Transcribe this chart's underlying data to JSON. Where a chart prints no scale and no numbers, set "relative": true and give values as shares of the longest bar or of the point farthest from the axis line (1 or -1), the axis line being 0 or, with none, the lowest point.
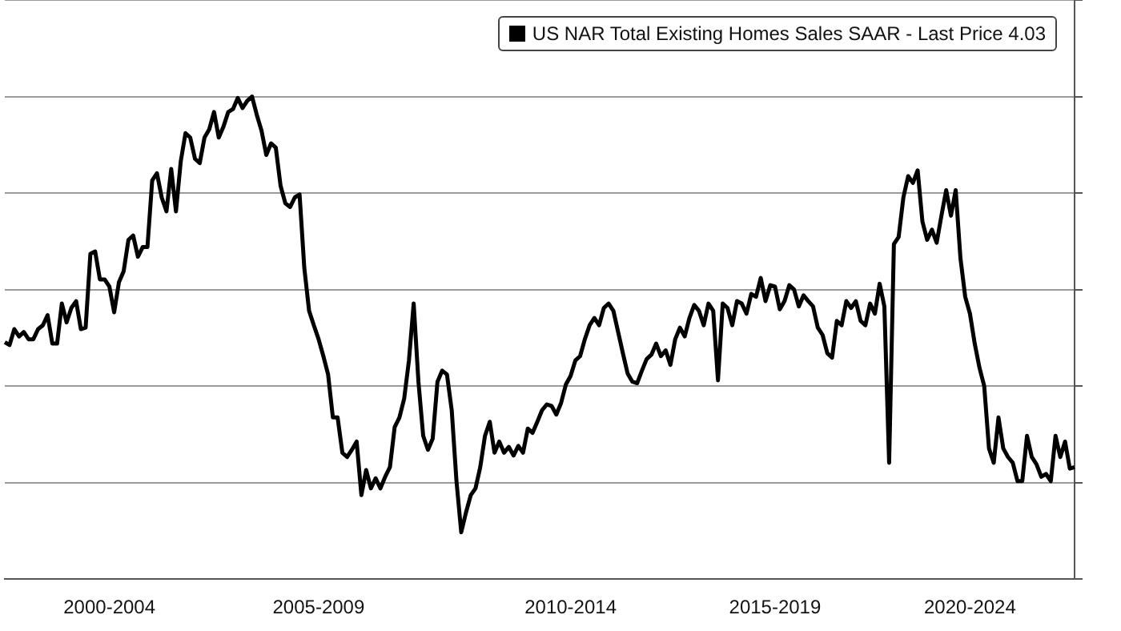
{
  "chart_data": {
    "type": "line",
    "relative": true,
    "legend": "top right",
    "grid": "y",
    "marker": "none",
    "line_style": "solid",
    "categories": [
      null,
      null,
      null,
      null,
      null,
      null,
      null,
      null,
      null,
      null,
      null,
      null,
      null,
      null,
      null,
      null,
      null,
      null,
      null,
      null,
      null,
      null,
      "2000-2004",
      null,
      null,
      null,
      null,
      null,
      null,
      null,
      null,
      null,
      null,
      null,
      null,
      null,
      null,
      null,
      null,
      null,
      null,
      null,
      null,
      null,
      null,
      null,
      null,
      null,
      null,
      null,
      null,
      null,
      null,
      null,
      null,
      null,
      null,
      null,
      null,
      null,
      null,
      null,
      null,
      null,
      null,
      null,
      "2005-2009",
      null,
      null,
      null,
      null,
      null,
      null,
      null,
      null,
      null,
      null,
      null,
      null,
      null,
      null,
      null,
      null,
      null,
      null,
      null,
      null,
      null,
      null,
      null,
      null,
      null,
      null,
      null,
      null,
      null,
      null,
      null,
      null,
      null,
      null,
      null,
      null,
      null,
      null,
      null,
      null,
      null,
      null,
      null,
      null,
      null,
      null,
      null,
      null,
      null,
      null,
      null,
      null,
      "2010-2014",
      null,
      null,
      null,
      null,
      null,
      null,
      null,
      null,
      null,
      null,
      null,
      null,
      null,
      null,
      null,
      null,
      null,
      null,
      null,
      null,
      null,
      null,
      null,
      null,
      null,
      null,
      null,
      null,
      null,
      null,
      null,
      null,
      null,
      null,
      null,
      null,
      null,
      null,
      null,
      null,
      null,
      null,
      "2015-2019",
      null,
      null,
      null,
      null,
      null,
      null,
      null,
      null,
      null,
      null,
      null,
      null,
      null,
      null,
      null,
      null,
      null,
      null,
      null,
      null,
      null,
      null,
      null,
      null,
      null,
      null,
      null,
      null,
      null,
      null,
      null,
      null,
      null,
      null,
      null,
      null,
      null,
      null,
      null,
      null,
      "2020-2024",
      null,
      null,
      null,
      null,
      null,
      null,
      null,
      null,
      null,
      null,
      null,
      null,
      null,
      null,
      null,
      null,
      null,
      null,
      null,
      null,
      null,
      null
    ],
    "series": [
      {
        "name": "US NAR Total Existing Homes Sales SAAR - Last Price 4.03",
        "color": "#000000",
        "values": [
          0.491,
          0.485,
          0.518,
          0.503,
          0.512,
          0.497,
          0.497,
          0.518,
          0.526,
          0.547,
          0.488,
          0.488,
          0.571,
          0.532,
          0.562,
          0.576,
          0.518,
          0.521,
          0.674,
          0.679,
          0.621,
          0.621,
          0.606,
          0.553,
          0.615,
          0.638,
          0.703,
          0.712,
          0.668,
          0.688,
          0.688,
          0.826,
          0.841,
          0.791,
          0.762,
          0.85,
          0.762,
          0.865,
          0.924,
          0.915,
          0.871,
          0.862,
          0.915,
          0.932,
          0.968,
          0.915,
          0.938,
          0.968,
          0.974,
          0.997,
          0.976,
          0.991,
          1,
          0.962,
          0.929,
          0.879,
          0.903,
          0.894,
          0.815,
          0.779,
          0.771,
          0.791,
          0.797,
          0.644,
          0.556,
          0.526,
          0.497,
          0.462,
          0.424,
          0.335,
          0.335,
          0.262,
          0.253,
          0.268,
          0.285,
          0.174,
          0.226,
          0.188,
          0.209,
          0.188,
          0.212,
          0.232,
          0.315,
          0.335,
          0.374,
          0.453,
          0.571,
          0.409,
          0.297,
          0.268,
          0.291,
          0.409,
          0.432,
          0.424,
          0.35,
          0.203,
          0.097,
          0.138,
          0.174,
          0.188,
          0.232,
          0.297,
          0.326,
          0.262,
          0.285,
          0.262,
          0.274,
          0.256,
          0.276,
          0.262,
          0.312,
          0.303,
          0.326,
          0.35,
          0.362,
          0.359,
          0.341,
          0.365,
          0.403,
          0.421,
          0.453,
          0.462,
          0.497,
          0.526,
          0.541,
          0.526,
          0.562,
          0.571,
          0.556,
          0.512,
          0.468,
          0.426,
          0.409,
          0.406,
          0.432,
          0.456,
          0.465,
          0.488,
          0.462,
          0.474,
          0.444,
          0.497,
          0.521,
          0.503,
          0.541,
          0.568,
          0.556,
          0.526,
          0.571,
          0.556,
          0.412,
          0.571,
          0.562,
          0.526,
          0.576,
          0.571,
          0.55,
          0.591,
          0.585,
          0.624,
          0.576,
          0.609,
          0.606,
          0.559,
          0.576,
          0.609,
          0.6,
          0.565,
          0.588,
          0.576,
          0.565,
          0.521,
          0.506,
          0.468,
          0.459,
          0.535,
          0.526,
          0.576,
          0.562,
          0.576,
          0.535,
          0.526,
          0.571,
          0.55,
          0.612,
          0.565,
          0.241,
          0.694,
          0.709,
          0.791,
          0.835,
          0.821,
          0.847,
          0.741,
          0.703,
          0.724,
          0.697,
          0.753,
          0.806,
          0.753,
          0.806,
          0.665,
          0.585,
          0.55,
          0.488,
          0.438,
          0.4,
          0.271,
          0.241,
          0.335,
          0.271,
          0.253,
          0.241,
          0.203,
          0.203,
          0.297,
          0.253,
          0.238,
          0.212,
          0.218,
          0.203,
          0.297,
          0.253,
          0.285,
          0.229,
          0.232
        ]
      }
    ]
  }
}
